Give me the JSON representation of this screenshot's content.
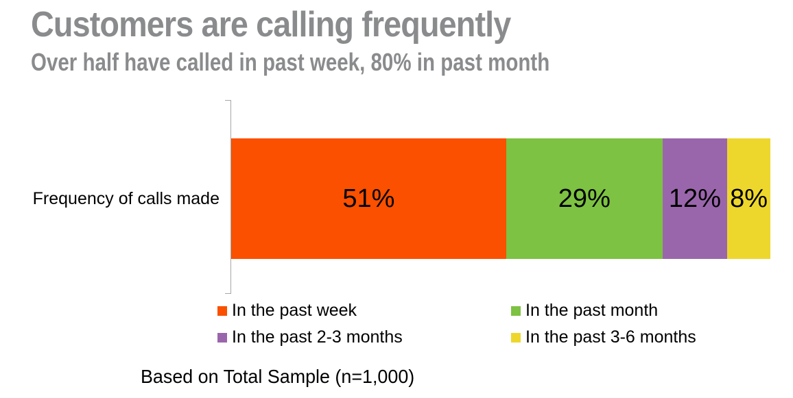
{
  "page": {
    "background_color": "#FFFFFF",
    "title_color": "#8A8B8D",
    "axis_color": "#A6A6A6"
  },
  "chart_data": {
    "type": "bar",
    "stacked": true,
    "orientation": "horizontal",
    "title": "Customers are calling frequently",
    "subtitle": "Over half have called in past week, 80% in past month",
    "categories": [
      "Frequency of calls made"
    ],
    "xlim": [
      0,
      100
    ],
    "grid": false,
    "legend_position": "bottom",
    "series": [
      {
        "name": "In the past week",
        "values": [
          51
        ],
        "label": "51%",
        "color": "#FA5000"
      },
      {
        "name": "In the past month",
        "values": [
          29
        ],
        "label": "29%",
        "color": "#7DC242"
      },
      {
        "name": "In the past 2-3 months",
        "values": [
          12
        ],
        "label": "12%",
        "color": "#9A66AB"
      },
      {
        "name": "In the past 3-6 months",
        "values": [
          8
        ],
        "label": "8%",
        "color": "#EED72D"
      }
    ],
    "footnote": "Based on Total Sample (n=1,000)"
  }
}
